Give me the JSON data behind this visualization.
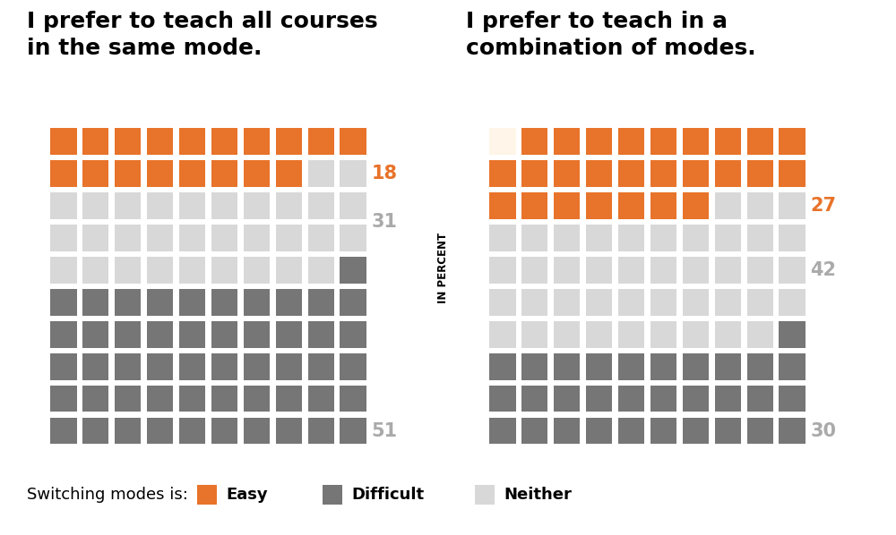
{
  "title_left": "I prefer to teach all courses\nin the same mode.",
  "title_right": "I prefer to teach in a\ncombination of modes.",
  "ylabel": "IN PERCENT",
  "left_data": {
    "easy_pct": 18,
    "neither_pct": 31,
    "difficult_pct": 51
  },
  "right_data": {
    "easy_pct": 27,
    "neither_pct": 42,
    "difficult_pct": 30
  },
  "color_easy": "#E8732A",
  "color_neither": "#D8D8D8",
  "color_difficult": "#767676",
  "color_first_square_right": "#FFF5E8",
  "bg_color": "#FFFFFF",
  "grid_cols": 10,
  "grid_rows": 10,
  "legend_label": "Switching modes is:",
  "title_fontsize": 18,
  "label_fontsize": 15,
  "legend_fontsize": 13
}
